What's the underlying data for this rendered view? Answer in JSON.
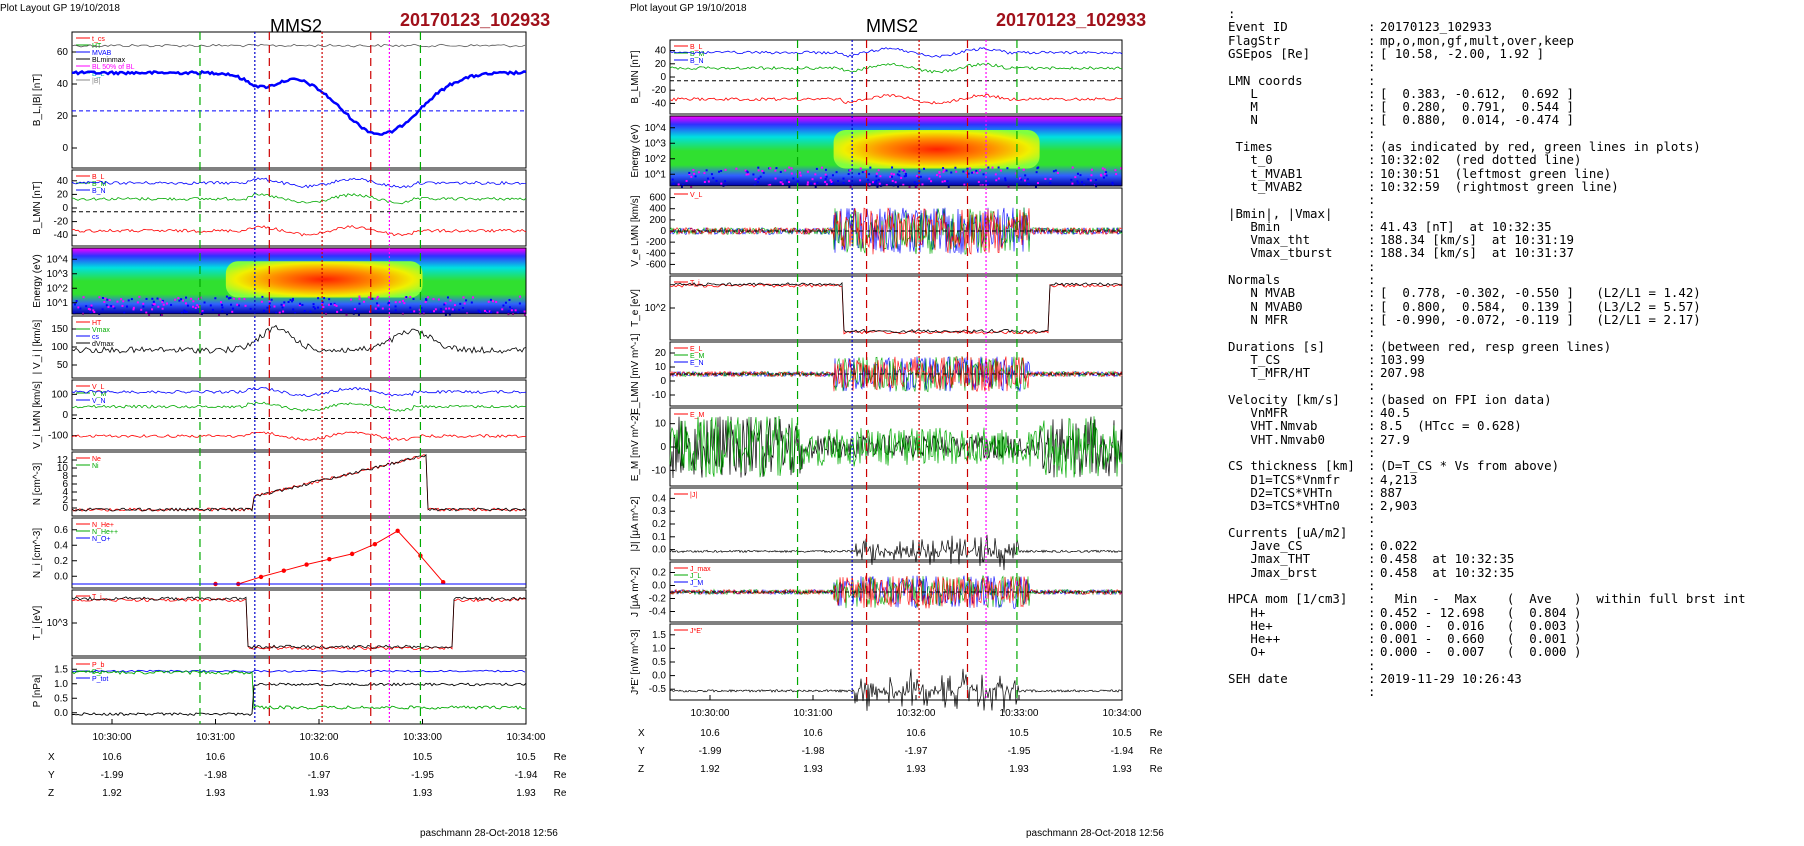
{
  "left_plot": {
    "header_left": "Plot Layout GP 19/10/2018",
    "spacecraft": "MMS2",
    "event_label": "20170123_102933",
    "footer": "paschmann 28-Oct-2018 12:56",
    "time_ticks": [
      "10:30:00",
      "10:31:00",
      "10:32:00",
      "10:33:00",
      "10:34:00"
    ],
    "pos_rows": [
      {
        "label": "X",
        "values": [
          "10.6",
          "10.6",
          "10.6",
          "10.5",
          "10.5"
        ],
        "unit": "Re"
      },
      {
        "label": "Y",
        "values": [
          "-1.99",
          "-1.98",
          "-1.97",
          "-1.95",
          "-1.94"
        ],
        "unit": "Re"
      },
      {
        "label": "Z",
        "values": [
          "1.92",
          "1.93",
          "1.93",
          "1.93",
          "1.93"
        ],
        "unit": "Re"
      }
    ],
    "panels": [
      {
        "ylabel": "B_L,|B| [nT]",
        "ticks": [
          "60",
          "40",
          "20",
          "0"
        ],
        "legend": [
          "t_cs",
          "HT",
          "MVAB",
          "BLminmax",
          "BL 50% of BL",
          "B_L",
          "|B|"
        ]
      },
      {
        "ylabel": "B_LMN [nT]",
        "ticks": [
          "40",
          "20",
          "0",
          "-20",
          "-40"
        ],
        "legend": [
          "B_L",
          "B_M",
          "B_N"
        ]
      },
      {
        "ylabel": "Energy (eV)",
        "ticks": [
          "10^4",
          "10^3",
          "10^2",
          "10^1"
        ],
        "legend": []
      },
      {
        "ylabel": "| V_i | [km/s]",
        "ticks": [
          "150",
          "100",
          "50"
        ],
        "legend": [
          "HT",
          "Vmax",
          "cs",
          "dVmax"
        ]
      },
      {
        "ylabel": "V_i LMN [km/s]",
        "ticks": [
          "100",
          "0",
          "-100"
        ],
        "legend": [
          "V_L",
          "V_M",
          "V_N"
        ]
      },
      {
        "ylabel": "N [cm^-3]",
        "ticks": [
          "12",
          "10",
          "8",
          "6",
          "4",
          "2",
          "0"
        ],
        "legend": [
          "Ne",
          "Ni"
        ]
      },
      {
        "ylabel": "N_i [cm^-3]",
        "ticks": [
          "0.6",
          "0.4",
          "0.2",
          "0.0"
        ],
        "legend": [
          "N_He+",
          "N_He++",
          "N_O+"
        ]
      },
      {
        "ylabel": "T_i [eV]",
        "ticks": [
          "10^3"
        ],
        "legend": [
          "T_i"
        ]
      },
      {
        "ylabel": "P [nPa]",
        "ticks": [
          "1.5",
          "1.0",
          "0.5",
          "0.0"
        ],
        "legend": [
          "P_b",
          "P_i",
          "P_tot"
        ]
      }
    ]
  },
  "middle_plot": {
    "header_left": "Plot layout GP 19/10/2018",
    "spacecraft": "MMS2",
    "event_label": "20170123_102933",
    "footer": "paschmann 28-Oct-2018 12:56",
    "time_ticks": [
      "10:30:00",
      "10:31:00",
      "10:32:00",
      "10:33:00",
      "10:34:00"
    ],
    "pos_rows": [
      {
        "label": "X",
        "values": [
          "10.6",
          "10.6",
          "10.6",
          "10.5",
          "10.5"
        ],
        "unit": "Re"
      },
      {
        "label": "Y",
        "values": [
          "-1.99",
          "-1.98",
          "-1.97",
          "-1.95",
          "-1.94"
        ],
        "unit": "Re"
      },
      {
        "label": "Z",
        "values": [
          "1.92",
          "1.93",
          "1.93",
          "1.93",
          "1.93"
        ],
        "unit": "Re"
      }
    ],
    "panels": [
      {
        "ylabel": "B_LMN [nT]",
        "ticks": [
          "40",
          "20",
          "0",
          "-20",
          "-40"
        ],
        "legend": [
          "B_L",
          "B_M",
          "B_N"
        ]
      },
      {
        "ylabel": "Energy (eV)",
        "ticks": [
          "10^4",
          "10^3",
          "10^2",
          "10^1"
        ],
        "legend": []
      },
      {
        "ylabel": "V_e LMN [km/s]",
        "ticks": [
          "600",
          "400",
          "200",
          "0",
          "-200",
          "-400",
          "-600"
        ],
        "legend": [
          "V_L"
        ]
      },
      {
        "ylabel": "T_e [eV]",
        "ticks": [
          "10^2"
        ],
        "legend": [
          "T_i"
        ]
      },
      {
        "ylabel": "E_LMN [mV m^-1]",
        "ticks": [
          "20",
          "10",
          "0",
          "-10"
        ],
        "legend": [
          "E_L",
          "E_M",
          "E_N"
        ]
      },
      {
        "ylabel": "E_M [mV m^-2]",
        "ticks": [
          "10",
          "0",
          "-10"
        ],
        "legend": [
          "E_M"
        ]
      },
      {
        "ylabel": "|J| [μA m^-2]",
        "ticks": [
          "0.4",
          "0.3",
          "0.2",
          "0.1",
          "0.0"
        ],
        "legend": [
          "|J|"
        ]
      },
      {
        "ylabel": "J [μA m^-2]",
        "ticks": [
          "0.2",
          "0.0",
          "-0.2",
          "-0.4"
        ],
        "legend": [
          "J_max",
          "J_L",
          "J_M"
        ]
      },
      {
        "ylabel": "J*E' [nW m^-3]",
        "ticks": [
          "1.5",
          "1.0",
          "0.5",
          "0.0",
          "-0.5"
        ],
        "legend": [
          "J*E'"
        ]
      }
    ]
  },
  "summary": [
    {
      "label": ":",
      "value": ""
    },
    {
      "label": "Event ID",
      "value": "20170123_102933"
    },
    {
      "label": "FlagStr",
      "value": "mp,o,mon,gf,mult,over,keep"
    },
    {
      "label": "GSEpos [Re]",
      "value": "[ 10.58, -2.00, 1.92 ]"
    },
    {
      "label": "",
      "value": ""
    },
    {
      "label": "LMN coords",
      "value": ""
    },
    {
      "label": "   L",
      "value": "[  0.383, -0.612,  0.692 ]"
    },
    {
      "label": "   M",
      "value": "[  0.280,  0.791,  0.544 ]"
    },
    {
      "label": "   N",
      "value": "[  0.880,  0.014, -0.474 ]"
    },
    {
      "label": "",
      "value": ""
    },
    {
      "label": " Times",
      "value": "(as indicated by red, green lines in plots)"
    },
    {
      "label": "   t_0",
      "value": "10:32:02  (red dotted line)"
    },
    {
      "label": "   t_MVAB1",
      "value": "10:30:51  (leftmost green line)"
    },
    {
      "label": "   t_MVAB2",
      "value": "10:32:59  (rightmost green line)"
    },
    {
      "label": "",
      "value": ""
    },
    {
      "label": "|Bmin|, |Vmax|",
      "value": ""
    },
    {
      "label": "   Bmin",
      "value": "41.43 [nT]  at 10:32:35"
    },
    {
      "label": "   Vmax_tht",
      "value": "188.34 [km/s]  at 10:31:19"
    },
    {
      "label": "   Vmax_tburst",
      "value": "188.34 [km/s]  at 10:31:37"
    },
    {
      "label": "",
      "value": ""
    },
    {
      "label": "Normals",
      "value": ""
    },
    {
      "label": "   N MVAB",
      "value": "[  0.778, -0.302, -0.550 ]   (L2/L1 = 1.42)"
    },
    {
      "label": "   N MVAB0",
      "value": "[  0.800,  0.584,  0.139 ]   (L3/L2 = 5.57)"
    },
    {
      "label": "   N MFR",
      "value": "[ -0.990, -0.072, -0.119 ]   (L2/L1 = 2.17)"
    },
    {
      "label": "",
      "value": ""
    },
    {
      "label": "Durations [s]",
      "value": "(between red, resp green lines)"
    },
    {
      "label": "   T_CS",
      "value": "103.99"
    },
    {
      "label": "   T_MFR/HT",
      "value": "207.98"
    },
    {
      "label": "",
      "value": ""
    },
    {
      "label": "Velocity [km/s]",
      "value": "(based on FPI ion data)"
    },
    {
      "label": "   VnMFR",
      "value": "40.5"
    },
    {
      "label": "   VHT.Nmvab",
      "value": "8.5  (HTcc = 0.628)"
    },
    {
      "label": "   VHT.Nmvab0",
      "value": "27.9"
    },
    {
      "label": "",
      "value": ""
    },
    {
      "label": "CS thickness [km]",
      "value": "(D=T_CS * Vs from above)"
    },
    {
      "label": "   D1=TCS*Vnmfr",
      "value": "4,213"
    },
    {
      "label": "   D2=TCS*VHTn",
      "value": "887"
    },
    {
      "label": "   D3=TCS*VHTn0",
      "value": "2,903"
    },
    {
      "label": "",
      "value": ""
    },
    {
      "label": "Currents [uA/m2]",
      "value": ""
    },
    {
      "label": "   Jave_CS",
      "value": "0.022"
    },
    {
      "label": "   Jmax_THT",
      "value": "0.458  at 10:32:35"
    },
    {
      "label": "   Jmax_brst",
      "value": "0.458  at 10:32:35"
    },
    {
      "label": "",
      "value": ""
    },
    {
      "label": "HPCA mom [1/cm3]",
      "value": "  Min  -  Max    (  Ave   )  within full brst int"
    },
    {
      "label": "   H+",
      "value": "0.452 - 12.698   (  0.804 )"
    },
    {
      "label": "   He+",
      "value": "0.000 -  0.016   (  0.003 )"
    },
    {
      "label": "   He++",
      "value": "0.001 -  0.660   (  0.001 )"
    },
    {
      "label": "   O+",
      "value": "0.000 -  0.007   (  0.000 )"
    },
    {
      "label": "",
      "value": ""
    },
    {
      "label": "SEH date",
      "value": "2019-11-29 10:26:43"
    },
    {
      "label": "",
      "value": ""
    }
  ],
  "chart_data": [
    {
      "type": "line",
      "title": "MMS2",
      "xlabel": "",
      "x_ticks": [
        "10:30:00",
        "10:31:00",
        "10:32:00",
        "10:33:00",
        "10:34:00"
      ],
      "series_note": "multi-panel time series plot",
      "n_proton_He_pp": {
        "x": [
          "10:30:00",
          "10:31:00",
          "10:31:15",
          "10:31:30",
          "10:31:45",
          "10:32:00",
          "10:32:15",
          "10:32:30",
          "10:32:45",
          "10:33:00",
          "10:33:15"
        ],
        "values": [
          0.0,
          0.0,
          0.08,
          0.15,
          0.22,
          0.28,
          0.34,
          0.45,
          0.6,
          0.32,
          0.02
        ]
      },
      "colors": {
        "blue": "#0000ff",
        "green": "#00cc00",
        "red": "#ff0000",
        "black": "#000000",
        "magenta": "#ff00ff"
      }
    },
    {
      "type": "line",
      "title": "MMS2",
      "xlabel": "",
      "x_ticks": [
        "10:30:00",
        "10:31:00",
        "10:32:00",
        "10:33:00",
        "10:34:00"
      ]
    }
  ]
}
